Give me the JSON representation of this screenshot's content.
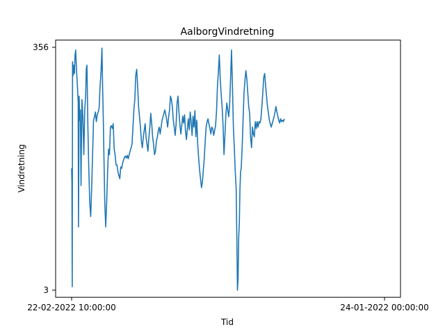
{
  "chart_data": {
    "type": "line",
    "title": "AalborgVindretning",
    "xlabel": "Tid",
    "ylabel": "Vindretning",
    "x_ticks": [
      "22-02-2022 10:00:00",
      "24-01-2022 00:00:00"
    ],
    "y_ticks": [
      "3",
      "356"
    ],
    "ylim": [
      3,
      356
    ],
    "x_domain": [
      0,
      1
    ],
    "grid": false,
    "legend": "none",
    "series": [
      {
        "color": "#1f77b4",
        "points": [
          [
            0.0,
            180
          ],
          [
            0.001,
            160
          ],
          [
            0.002,
            8
          ],
          [
            0.003,
            335
          ],
          [
            0.005,
            315
          ],
          [
            0.007,
            330
          ],
          [
            0.009,
            318
          ],
          [
            0.011,
            345
          ],
          [
            0.013,
            352
          ],
          [
            0.016,
            320
          ],
          [
            0.019,
            295
          ],
          [
            0.021,
            275
          ],
          [
            0.022,
            95
          ],
          [
            0.024,
            285
          ],
          [
            0.026,
            250
          ],
          [
            0.028,
            265
          ],
          [
            0.03,
            155
          ],
          [
            0.033,
            280
          ],
          [
            0.036,
            255
          ],
          [
            0.039,
            200
          ],
          [
            0.042,
            265
          ],
          [
            0.045,
            288
          ],
          [
            0.047,
            325
          ],
          [
            0.049,
            330
          ],
          [
            0.052,
            240
          ],
          [
            0.055,
            178
          ],
          [
            0.058,
            130
          ],
          [
            0.061,
            110
          ],
          [
            0.064,
            150
          ],
          [
            0.067,
            200
          ],
          [
            0.07,
            250
          ],
          [
            0.073,
            255
          ],
          [
            0.076,
            262
          ],
          [
            0.079,
            248
          ],
          [
            0.082,
            258
          ],
          [
            0.085,
            262
          ],
          [
            0.088,
            268
          ],
          [
            0.091,
            300
          ],
          [
            0.094,
            320
          ],
          [
            0.097,
            355
          ],
          [
            0.099,
            300
          ],
          [
            0.101,
            258
          ],
          [
            0.103,
            205
          ],
          [
            0.106,
            130
          ],
          [
            0.109,
            95
          ],
          [
            0.112,
            130
          ],
          [
            0.115,
            175
          ],
          [
            0.118,
            208
          ],
          [
            0.121,
            200
          ],
          [
            0.124,
            240
          ],
          [
            0.127,
            242
          ],
          [
            0.13,
            238
          ],
          [
            0.133,
            245
          ],
          [
            0.136,
            208
          ],
          [
            0.139,
            200
          ],
          [
            0.142,
            185
          ],
          [
            0.145,
            185
          ],
          [
            0.148,
            175
          ],
          [
            0.151,
            170
          ],
          [
            0.154,
            165
          ],
          [
            0.157,
            182
          ],
          [
            0.16,
            180
          ],
          [
            0.163,
            188
          ],
          [
            0.166,
            192
          ],
          [
            0.169,
            196
          ],
          [
            0.172,
            198
          ],
          [
            0.175,
            195
          ],
          [
            0.178,
            199
          ],
          [
            0.181,
            194
          ],
          [
            0.184,
            200
          ],
          [
            0.187,
            205
          ],
          [
            0.19,
            210
          ],
          [
            0.193,
            215
          ],
          [
            0.196,
            240
          ],
          [
            0.199,
            265
          ],
          [
            0.202,
            280
          ],
          [
            0.205,
            315
          ],
          [
            0.208,
            324
          ],
          [
            0.211,
            300
          ],
          [
            0.214,
            270
          ],
          [
            0.217,
            255
          ],
          [
            0.22,
            240
          ],
          [
            0.223,
            220
          ],
          [
            0.226,
            210
          ],
          [
            0.229,
            225
          ],
          [
            0.232,
            235
          ],
          [
            0.235,
            245
          ],
          [
            0.238,
            225
          ],
          [
            0.241,
            215
          ],
          [
            0.244,
            205
          ],
          [
            0.247,
            225
          ],
          [
            0.25,
            240
          ],
          [
            0.253,
            260
          ],
          [
            0.256,
            245
          ],
          [
            0.259,
            225
          ],
          [
            0.262,
            215
          ],
          [
            0.265,
            200
          ],
          [
            0.268,
            205
          ],
          [
            0.271,
            220
          ],
          [
            0.274,
            225
          ],
          [
            0.277,
            235
          ],
          [
            0.28,
            240
          ],
          [
            0.283,
            230
          ],
          [
            0.286,
            240
          ],
          [
            0.289,
            250
          ],
          [
            0.292,
            255
          ],
          [
            0.295,
            260
          ],
          [
            0.298,
            265
          ],
          [
            0.301,
            258
          ],
          [
            0.304,
            250
          ],
          [
            0.307,
            240
          ],
          [
            0.31,
            255
          ],
          [
            0.313,
            265
          ],
          [
            0.316,
            285
          ],
          [
            0.319,
            280
          ],
          [
            0.322,
            270
          ],
          [
            0.325,
            250
          ],
          [
            0.328,
            240
          ],
          [
            0.331,
            228
          ],
          [
            0.334,
            245
          ],
          [
            0.337,
            275
          ],
          [
            0.34,
            285
          ],
          [
            0.343,
            262
          ],
          [
            0.346,
            244
          ],
          [
            0.349,
            230
          ],
          [
            0.352,
            242
          ],
          [
            0.355,
            256
          ],
          [
            0.358,
            246
          ],
          [
            0.361,
            258
          ],
          [
            0.364,
            234
          ],
          [
            0.367,
            222
          ],
          [
            0.37,
            238
          ],
          [
            0.373,
            252
          ],
          [
            0.376,
            236
          ],
          [
            0.379,
            262
          ],
          [
            0.382,
            248
          ],
          [
            0.385,
            228
          ],
          [
            0.388,
            256
          ],
          [
            0.391,
            240
          ],
          [
            0.394,
            264
          ],
          [
            0.397,
            226
          ],
          [
            0.4,
            250
          ],
          [
            0.403,
            215
          ],
          [
            0.406,
            195
          ],
          [
            0.409,
            178
          ],
          [
            0.412,
            165
          ],
          [
            0.415,
            152
          ],
          [
            0.418,
            160
          ],
          [
            0.421,
            178
          ],
          [
            0.424,
            195
          ],
          [
            0.427,
            220
          ],
          [
            0.43,
            240
          ],
          [
            0.433,
            248
          ],
          [
            0.436,
            252
          ],
          [
            0.439,
            244
          ],
          [
            0.442,
            238
          ],
          [
            0.445,
            230
          ],
          [
            0.448,
            240
          ],
          [
            0.451,
            238
          ],
          [
            0.454,
            228
          ],
          [
            0.457,
            235
          ],
          [
            0.46,
            242
          ],
          [
            0.463,
            262
          ],
          [
            0.466,
            298
          ],
          [
            0.469,
            320
          ],
          [
            0.472,
            345
          ],
          [
            0.475,
            310
          ],
          [
            0.478,
            288
          ],
          [
            0.481,
            270
          ],
          [
            0.484,
            242
          ],
          [
            0.487,
            200
          ],
          [
            0.49,
            228
          ],
          [
            0.493,
            258
          ],
          [
            0.496,
            275
          ],
          [
            0.499,
            265
          ],
          [
            0.502,
            255
          ],
          [
            0.505,
            272
          ],
          [
            0.508,
            310
          ],
          [
            0.511,
            352
          ],
          [
            0.514,
            300
          ],
          [
            0.517,
            240
          ],
          [
            0.52,
            210
          ],
          [
            0.523,
            175
          ],
          [
            0.526,
            150
          ],
          [
            0.528,
            80
          ],
          [
            0.53,
            3
          ],
          [
            0.532,
            20
          ],
          [
            0.534,
            80
          ],
          [
            0.536,
            100
          ],
          [
            0.538,
            150
          ],
          [
            0.54,
            175
          ],
          [
            0.542,
            180
          ],
          [
            0.545,
            210
          ],
          [
            0.548,
            250
          ],
          [
            0.551,
            290
          ],
          [
            0.554,
            308
          ],
          [
            0.557,
            322
          ],
          [
            0.56,
            310
          ],
          [
            0.563,
            290
          ],
          [
            0.566,
            270
          ],
          [
            0.569,
            260
          ],
          [
            0.572,
            225
          ],
          [
            0.575,
            210
          ],
          [
            0.578,
            240
          ],
          [
            0.581,
            230
          ],
          [
            0.584,
            226
          ],
          [
            0.587,
            248
          ],
          [
            0.59,
            238
          ],
          [
            0.593,
            248
          ],
          [
            0.596,
            240
          ],
          [
            0.599,
            248
          ],
          [
            0.602,
            246
          ],
          [
            0.605,
            252
          ],
          [
            0.608,
            270
          ],
          [
            0.611,
            290
          ],
          [
            0.614,
            312
          ],
          [
            0.617,
            318
          ],
          [
            0.62,
            300
          ],
          [
            0.623,
            285
          ],
          [
            0.626,
            270
          ],
          [
            0.629,
            260
          ],
          [
            0.632,
            250
          ],
          [
            0.635,
            245
          ],
          [
            0.638,
            240
          ],
          [
            0.641,
            245
          ],
          [
            0.644,
            250
          ],
          [
            0.647,
            255
          ],
          [
            0.65,
            262
          ],
          [
            0.653,
            270
          ],
          [
            0.656,
            262
          ],
          [
            0.659,
            256
          ],
          [
            0.662,
            250
          ],
          [
            0.665,
            246
          ],
          [
            0.668,
            252
          ],
          [
            0.671,
            248
          ],
          [
            0.674,
            250
          ],
          [
            0.677,
            248
          ],
          [
            0.68,
            252
          ]
        ]
      }
    ]
  }
}
